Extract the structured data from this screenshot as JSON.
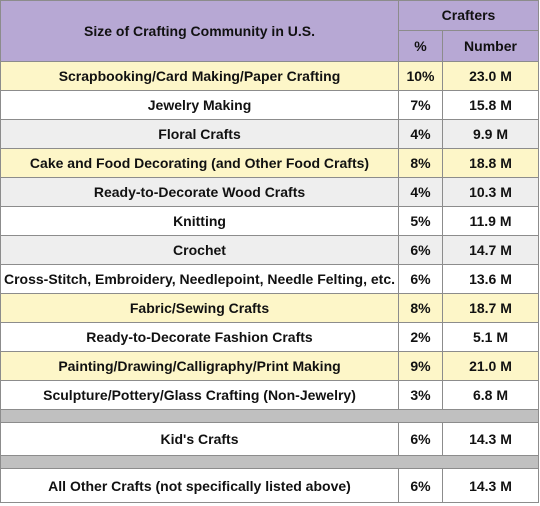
{
  "chart_data": {
    "type": "table",
    "title": "Size of Crafting Community in U.S.",
    "group_header": "Crafters",
    "columns": [
      "%",
      "Number"
    ],
    "rows": [
      {
        "category": "Scrapbooking/Card Making/Paper Crafting",
        "percent": "10%",
        "number": "23.0 M",
        "shade": "highlight"
      },
      {
        "category": "Jewelry Making",
        "percent": "7%",
        "number": "15.8 M",
        "shade": "white"
      },
      {
        "category": "Floral Crafts",
        "percent": "4%",
        "number": "9.9 M",
        "shade": "gray"
      },
      {
        "category": "Cake and Food Decorating (and Other Food Crafts)",
        "percent": "8%",
        "number": "18.8 M",
        "shade": "highlight"
      },
      {
        "category": "Ready-to-Decorate Wood Crafts",
        "percent": "4%",
        "number": "10.3 M",
        "shade": "gray"
      },
      {
        "category": "Knitting",
        "percent": "5%",
        "number": "11.9 M",
        "shade": "white"
      },
      {
        "category": "Crochet",
        "percent": "6%",
        "number": "14.7 M",
        "shade": "gray"
      },
      {
        "category": "Cross-Stitch, Embroidery, Needlepoint, Needle Felting, etc.",
        "percent": "6%",
        "number": "13.6 M",
        "shade": "white"
      },
      {
        "category": "Fabric/Sewing Crafts",
        "percent": "8%",
        "number": "18.7 M",
        "shade": "highlight"
      },
      {
        "category": "Ready-to-Decorate Fashion Crafts",
        "percent": "2%",
        "number": "5.1 M",
        "shade": "white"
      },
      {
        "category": "Painting/Drawing/Calligraphy/Print Making",
        "percent": "9%",
        "number": "21.0 M",
        "shade": "highlight"
      },
      {
        "category": "Sculpture/Pottery/Glass Crafting (Non-Jewelry)",
        "percent": "3%",
        "number": "6.8 M",
        "shade": "white"
      }
    ],
    "kids_row": {
      "category": "Kid's Crafts",
      "percent": "6%",
      "number": "14.3 M"
    },
    "other_row": {
      "category": "All Other Crafts (not specifically listed above)",
      "percent": "6%",
      "number": "14.3 M"
    }
  },
  "colors": {
    "header": "#b7a8d4",
    "highlight": "#fdf6c8",
    "gray": "#eeeeee",
    "white": "#ffffff",
    "separator": "#c0c0c0"
  }
}
